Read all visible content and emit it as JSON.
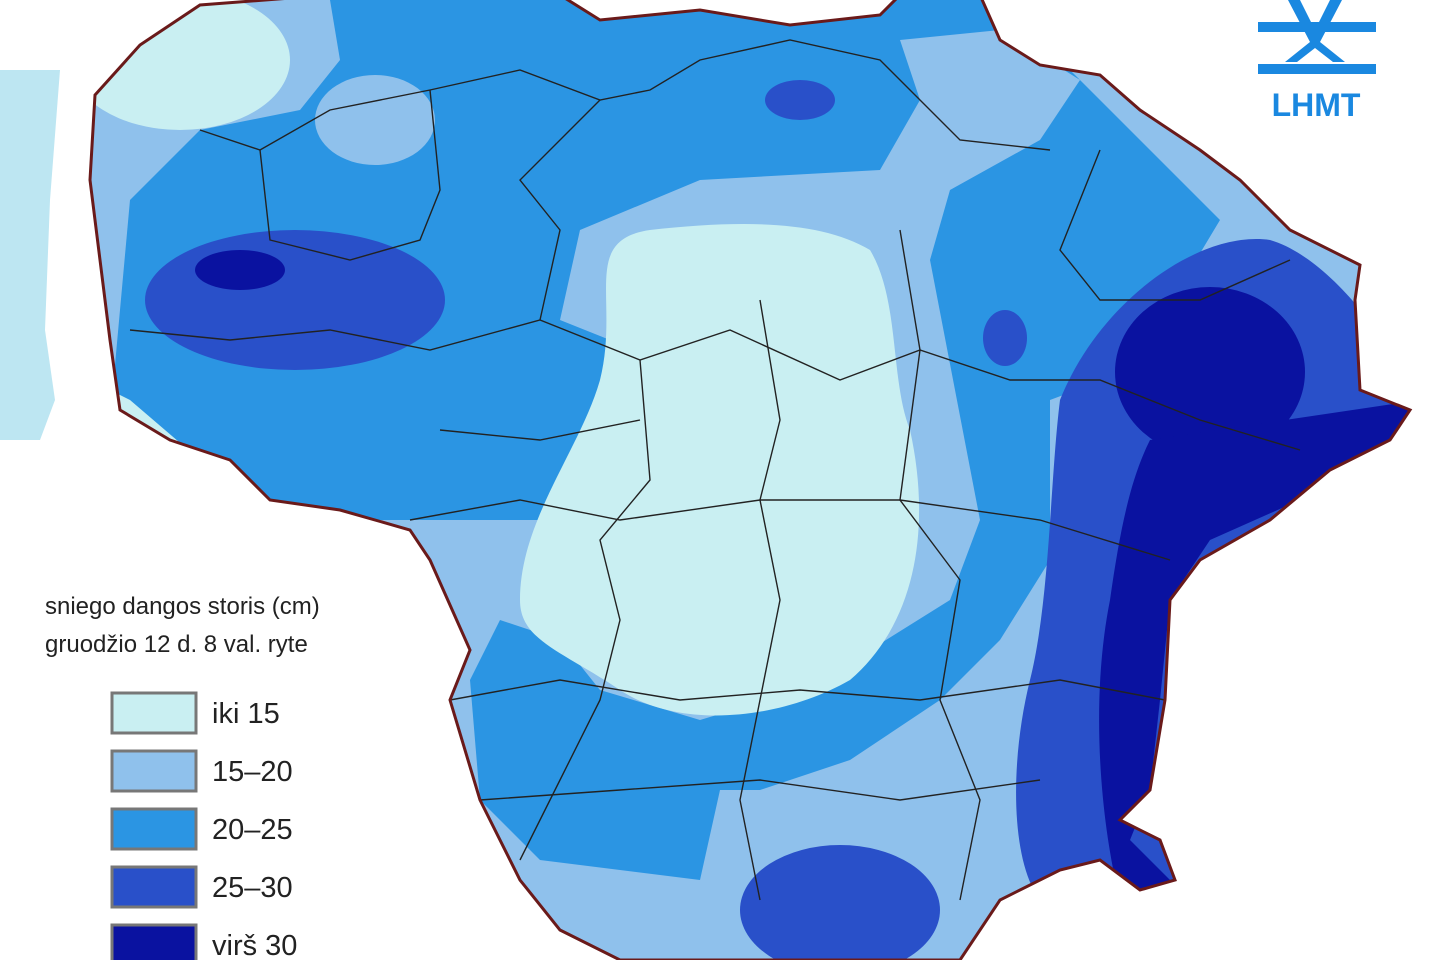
{
  "legend": {
    "title": [
      "sniego dangos storis (cm)",
      "gruodžio 12 d. 8 val. ryte"
    ],
    "items": [
      {
        "label": "iki 15",
        "color": "#c9eff2"
      },
      {
        "label": "15–20",
        "color": "#8fc1ec"
      },
      {
        "label": "20–25",
        "color": "#2b95e3"
      },
      {
        "label": "25–30",
        "color": "#2950c9"
      },
      {
        "label": "virš 30",
        "color": "#0a12a0"
      }
    ]
  },
  "logo": {
    "text": "LHMT"
  }
}
